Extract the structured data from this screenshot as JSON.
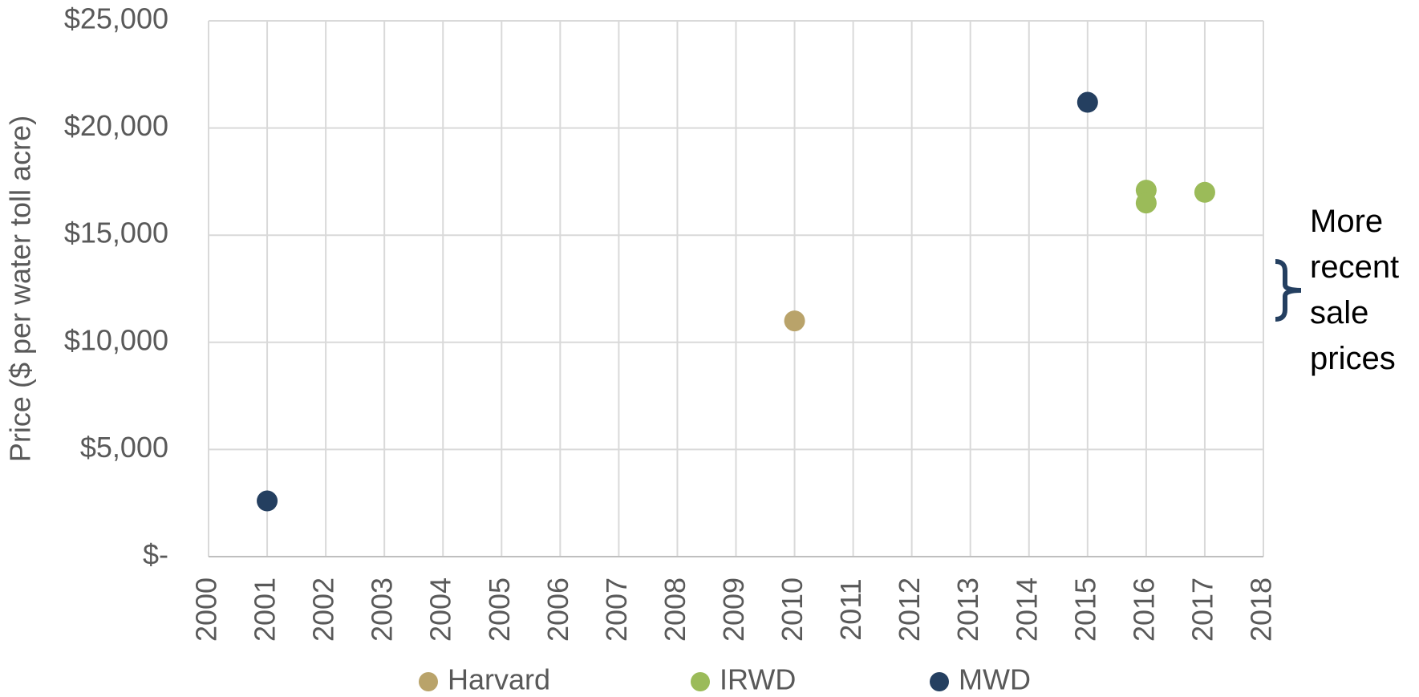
{
  "chart_data": {
    "type": "scatter",
    "y_label": "Price ($ per water toll acre)",
    "annotation": "More recent sale prices",
    "series": [
      {
        "name": "Harvard",
        "color": "#b9a36a",
        "x": [
          2010
        ],
        "values": [
          11000
        ]
      },
      {
        "name": "IRWD",
        "color": "#9bbb59",
        "x": [
          2016,
          2016,
          2017
        ],
        "values": [
          17100,
          16500,
          17000
        ]
      },
      {
        "name": "MWD",
        "color": "#243f60",
        "x": [
          2001,
          2015
        ],
        "values": [
          2600,
          21200
        ]
      }
    ],
    "xlim": [
      2000,
      2018
    ],
    "xticks": [
      2000,
      2001,
      2002,
      2003,
      2004,
      2005,
      2006,
      2007,
      2008,
      2009,
      2010,
      2011,
      2012,
      2013,
      2014,
      2015,
      2016,
      2017,
      2018
    ],
    "ylim": [
      0,
      25000
    ],
    "yticks": [
      {
        "value": 0,
        "label": "$-"
      },
      {
        "value": 5000,
        "label": "$5,000"
      },
      {
        "value": 10000,
        "label": "$10,000"
      },
      {
        "value": 15000,
        "label": "$15,000"
      },
      {
        "value": 20000,
        "label": "$20,000"
      },
      {
        "value": 25000,
        "label": "$25,000"
      }
    ],
    "grid": true,
    "legend": "bottom"
  }
}
